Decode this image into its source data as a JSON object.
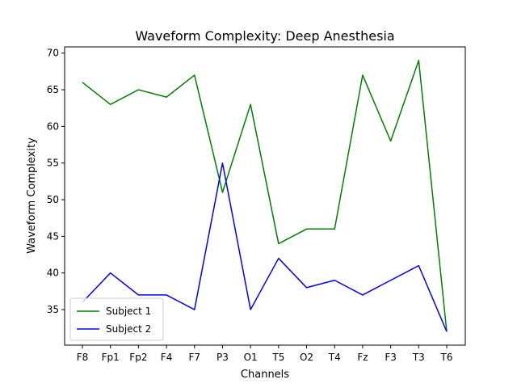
{
  "chart_data": {
    "type": "line",
    "title": "Waveform Complexity: Deep Anesthesia",
    "xlabel": "Channels",
    "ylabel": "Waveform Complexity",
    "categories": [
      "F8",
      "Fp1",
      "Fp2",
      "F4",
      "F7",
      "P3",
      "O1",
      "T5",
      "O2",
      "T4",
      "Fz",
      "F3",
      "T3",
      "T6"
    ],
    "series": [
      {
        "name": "Subject 1",
        "color": "#008000",
        "values": [
          66,
          63,
          65,
          64,
          67,
          51,
          63,
          44,
          46,
          46,
          67,
          58,
          69,
          32
        ]
      },
      {
        "name": "Subject 2",
        "color": "#0000ff",
        "values": [
          36,
          40,
          37,
          37,
          35,
          55,
          35,
          42,
          38,
          39,
          37,
          39,
          41,
          32
        ]
      }
    ],
    "ylim": [
      30.15,
      70.85
    ],
    "yticks": [
      35,
      40,
      45,
      50,
      55,
      60,
      65,
      70
    ],
    "grid": false,
    "legend_position": "lower-left"
  }
}
